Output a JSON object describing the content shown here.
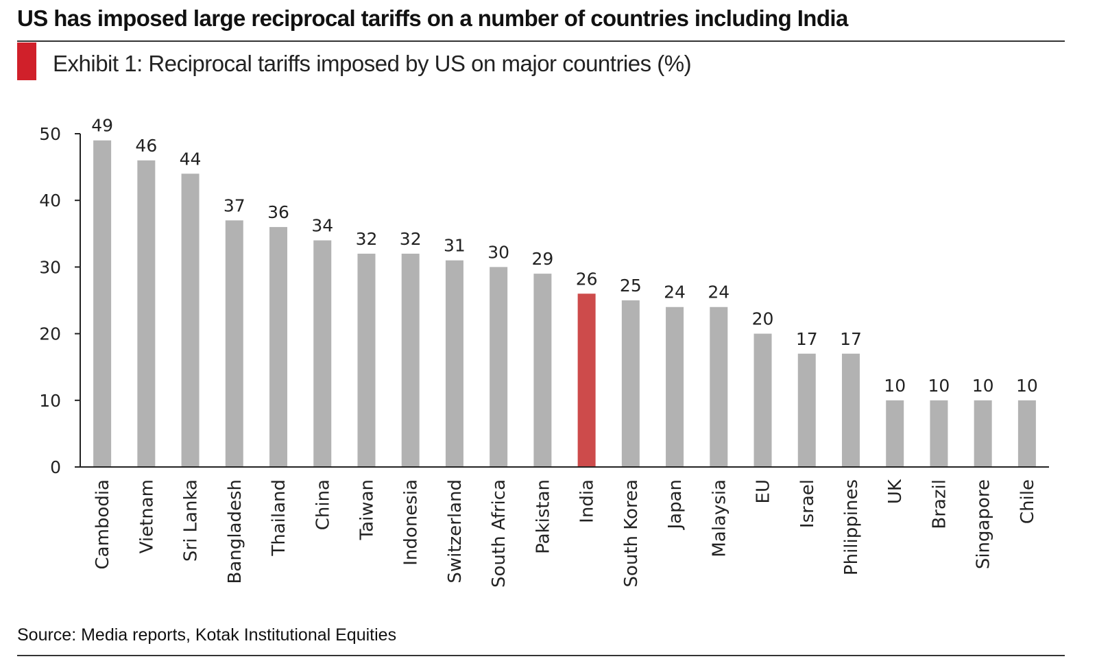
{
  "header": {
    "headline": "US has imposed large reciprocal tariffs on a number of countries including India",
    "exhibit_title": "Exhibit 1: Reciprocal tariffs imposed by US on major countries (%)"
  },
  "footer": {
    "source": "Source: Media reports, Kotak Institutional Equities"
  },
  "colors": {
    "bar_default": "#b2b2b2",
    "bar_highlight": "#cd4b4b",
    "accent": "#d0202a",
    "axis": "#222222"
  },
  "chart_data": {
    "type": "bar",
    "categories": [
      "Cambodia",
      "Vietnam",
      "Sri Lanka",
      "Bangladesh",
      "Thailand",
      "China",
      "Taiwan",
      "Indonesia",
      "Switzerland",
      "South Africa",
      "Pakistan",
      "India",
      "South Korea",
      "Japan",
      "Malaysia",
      "EU",
      "Israel",
      "Philippines",
      "UK",
      "Brazil",
      "Singapore",
      "Chile"
    ],
    "values": [
      49,
      46,
      44,
      37,
      36,
      34,
      32,
      32,
      31,
      30,
      29,
      26,
      25,
      24,
      24,
      20,
      17,
      17,
      10,
      10,
      10,
      10
    ],
    "highlight_category": "India",
    "ylim": [
      0,
      50
    ],
    "yticks": [
      0,
      10,
      20,
      30,
      40,
      50
    ],
    "data_labels": true,
    "grid": false,
    "legend": "none"
  }
}
